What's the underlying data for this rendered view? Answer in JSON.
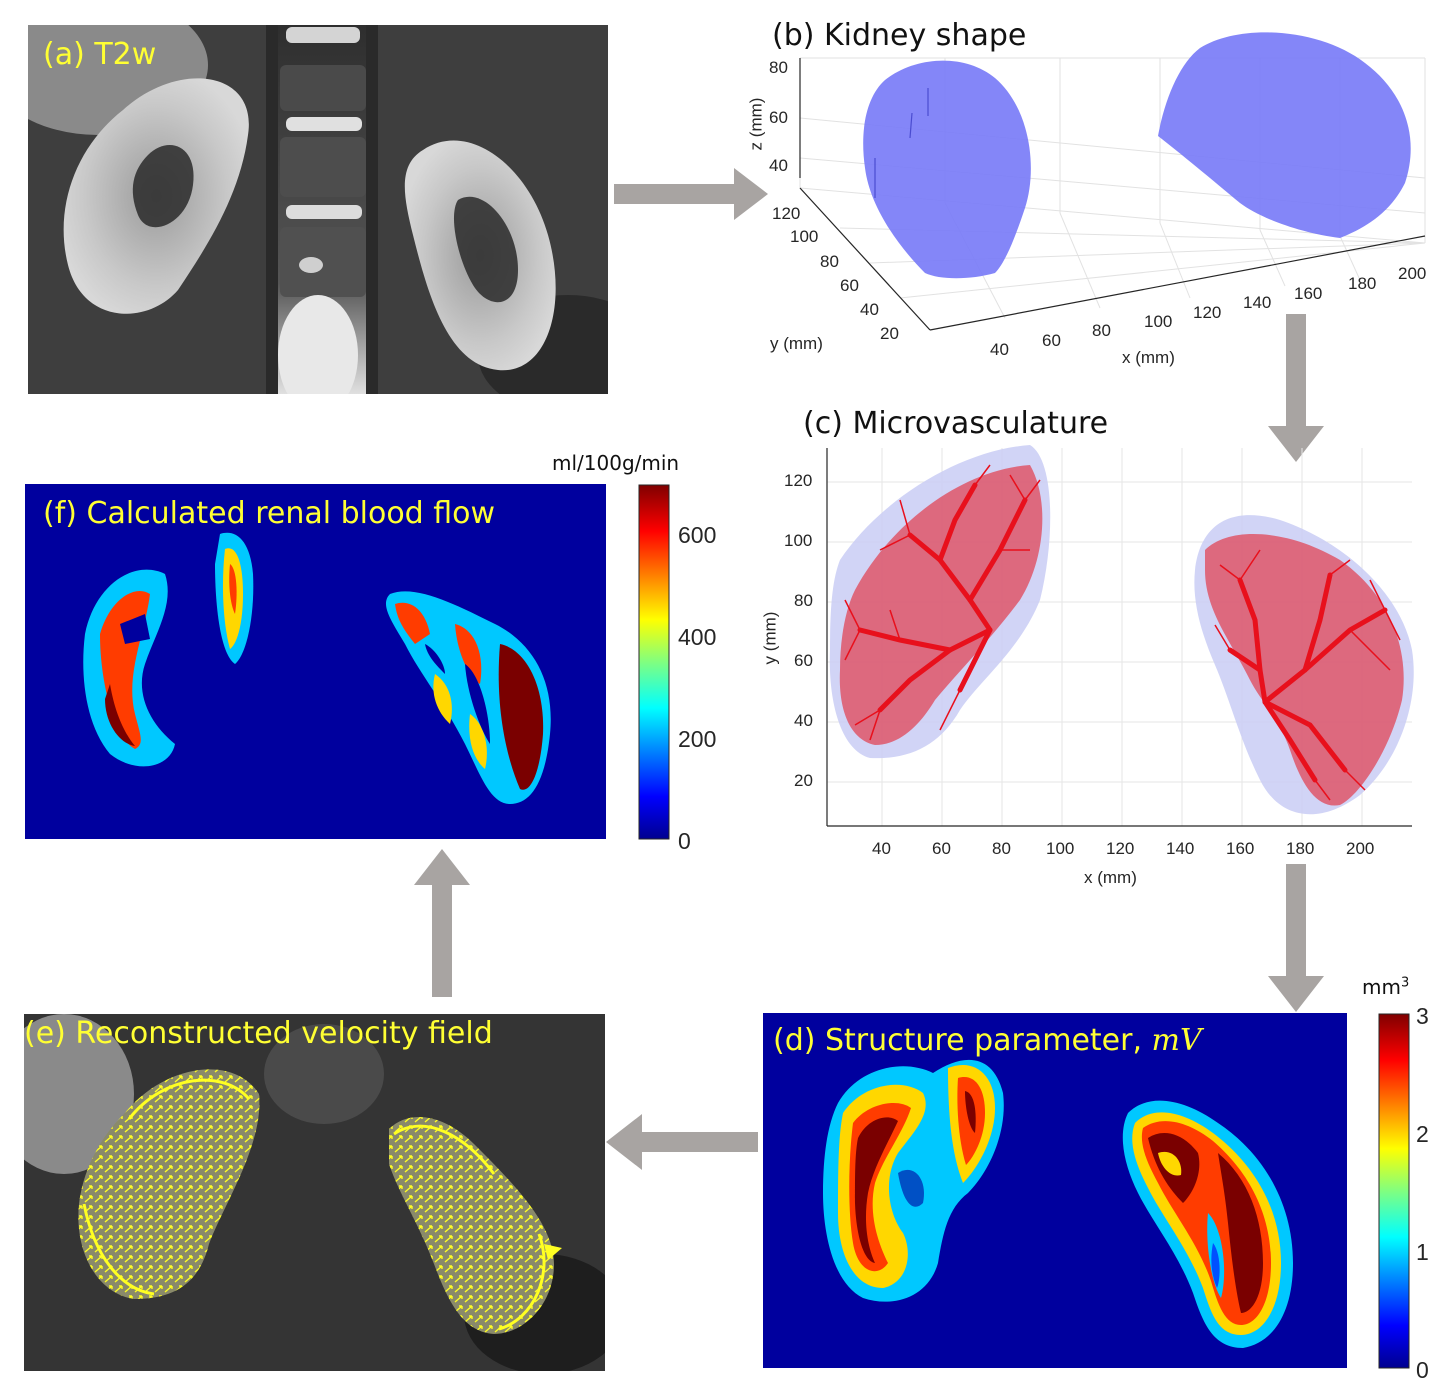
{
  "panels": {
    "a": {
      "title": "(a) T2w"
    },
    "b": {
      "title": "(b) Kidney shape",
      "xlabel": "x (mm)",
      "ylabel": "y (mm)",
      "zlabel": "z (mm)",
      "xticks": [
        "40",
        "60",
        "80",
        "100",
        "120",
        "140",
        "160",
        "180",
        "200"
      ],
      "yticks": [
        "20",
        "40",
        "60",
        "80",
        "100",
        "120"
      ],
      "zticks": [
        "40",
        "60",
        "80"
      ]
    },
    "c": {
      "title": "(c) Microvasculature",
      "xlabel": "x (mm)",
      "ylabel": "y (mm)",
      "xticks": [
        "40",
        "60",
        "80",
        "100",
        "120",
        "140",
        "160",
        "180",
        "200"
      ],
      "yticks": [
        "20",
        "40",
        "60",
        "80",
        "100",
        "120"
      ]
    },
    "d": {
      "title_prefix": "(d) Structure parameter, ",
      "title_symbol": "mV",
      "colorbar_unit": "mm",
      "colorbar_unit_sup": "3",
      "colorbar_ticks": [
        "0",
        "1",
        "2",
        "3"
      ]
    },
    "e": {
      "title": "(e) Reconstructed velocity field"
    },
    "f": {
      "title": "(f) Calculated renal blood flow",
      "colorbar_unit": "ml/100g/min",
      "colorbar_ticks": [
        "0",
        "200",
        "400",
        "600"
      ]
    }
  },
  "colors": {
    "arrow": "#a8a4a2",
    "highlight_text": "#ffff33",
    "kidney_3d": "#7a7cf7",
    "vessels": "#e8101c",
    "kidney_outline_2d": "#c9cdf5",
    "map_background": "#00009e"
  }
}
